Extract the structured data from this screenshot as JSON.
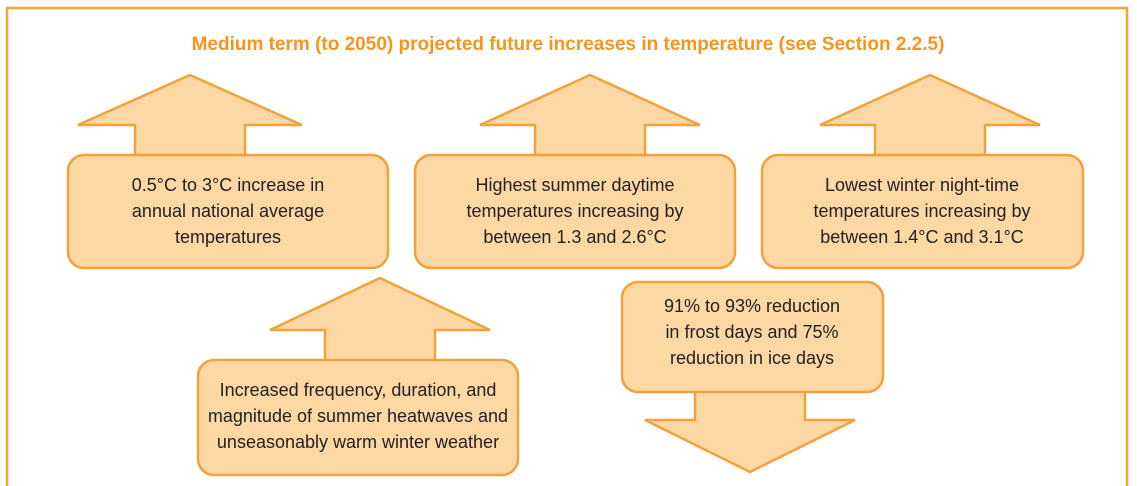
{
  "title": "Medium term (to 2050) projected future increases in temperature (see Section 2.2.5)",
  "boxes": [
    {
      "lines": [
        "0.5°C to 3°C increase in",
        "annual national average",
        "temperatures"
      ]
    },
    {
      "lines": [
        "Highest summer daytime",
        "temperatures increasing by",
        "between 1.3 and 2.6°C"
      ]
    },
    {
      "lines": [
        "Lowest winter night-time",
        "temperatures increasing by",
        "between 1.4°C and 3.1°C"
      ]
    },
    {
      "lines": [
        "Increased frequency, duration, and",
        "magnitude of summer heatwaves and",
        "unseasonably warm winter weather"
      ]
    },
    {
      "lines": [
        "91% to 93% reduction",
        "in frost days and 75%",
        "reduction in ice days"
      ]
    }
  ]
}
